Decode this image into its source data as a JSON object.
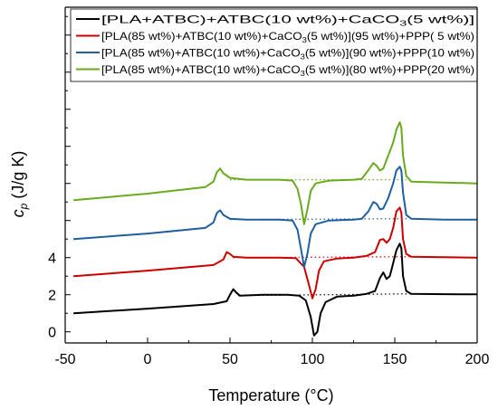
{
  "chart_data": {
    "type": "line",
    "xlabel": "Temperature (°C)",
    "ylabel_main": "c",
    "ylabel_sub": "p",
    "ylabel_unit": " (J/g K)",
    "xlim": [
      -50,
      200
    ],
    "ylim": [
      -0.6,
      17.5
    ],
    "xticks": [
      -50,
      0,
      50,
      100,
      150,
      200
    ],
    "yticks": [
      0,
      2,
      4
    ],
    "legend_position": "top",
    "series": [
      {
        "legend": [
          "[PLA+ATBC)+ATBC(10 wt%)+CaCO",
          "3",
          "(5 wt%)]"
        ],
        "color": "#000000",
        "points": [
          [
            -45,
            1.0
          ],
          [
            0,
            1.25
          ],
          [
            40,
            1.5
          ],
          [
            48,
            1.65
          ],
          [
            50,
            2.0
          ],
          [
            52,
            2.3
          ],
          [
            54,
            2.1
          ],
          [
            56,
            1.95
          ],
          [
            70,
            2.0
          ],
          [
            85,
            2.0
          ],
          [
            92,
            1.95
          ],
          [
            96,
            1.7
          ],
          [
            99,
            0.8
          ],
          [
            101,
            -0.2
          ],
          [
            103,
            0.0
          ],
          [
            105,
            1.0
          ],
          [
            108,
            1.6
          ],
          [
            115,
            1.9
          ],
          [
            125,
            1.95
          ],
          [
            133,
            2.05
          ],
          [
            138,
            2.2
          ],
          [
            141,
            2.9
          ],
          [
            143,
            3.2
          ],
          [
            145,
            2.85
          ],
          [
            147,
            3.0
          ],
          [
            149,
            3.7
          ],
          [
            151,
            4.4
          ],
          [
            153,
            4.75
          ],
          [
            154,
            4.5
          ],
          [
            155,
            3.0
          ],
          [
            157,
            2.2
          ],
          [
            160,
            2.05
          ],
          [
            180,
            2.03
          ],
          [
            200,
            2.02
          ]
        ],
        "baseline": [
          [
            55,
            1.95
          ],
          [
            160,
            2.05
          ]
        ]
      },
      {
        "legend": [
          "[PLA(85 wt%)+ATBC(10 wt%)+CaCO",
          "3",
          "(5 wt%)](95 wt%)+PPP(  5 wt%)"
        ],
        "color": "#cc0000",
        "points": [
          [
            -45,
            3.0
          ],
          [
            0,
            3.3
          ],
          [
            40,
            3.6
          ],
          [
            46,
            3.9
          ],
          [
            48,
            4.3
          ],
          [
            50,
            4.2
          ],
          [
            52,
            4.05
          ],
          [
            60,
            4.0
          ],
          [
            80,
            4.0
          ],
          [
            90,
            3.97
          ],
          [
            95,
            3.5
          ],
          [
            98,
            2.5
          ],
          [
            100,
            1.8
          ],
          [
            102,
            2.3
          ],
          [
            104,
            3.3
          ],
          [
            107,
            3.8
          ],
          [
            115,
            3.95
          ],
          [
            125,
            4.0
          ],
          [
            133,
            4.1
          ],
          [
            138,
            4.3
          ],
          [
            141,
            4.95
          ],
          [
            143,
            5.0
          ],
          [
            145,
            4.8
          ],
          [
            147,
            5.0
          ],
          [
            149,
            5.6
          ],
          [
            151,
            6.5
          ],
          [
            153,
            6.7
          ],
          [
            154,
            6.4
          ],
          [
            155,
            5.0
          ],
          [
            157,
            4.2
          ],
          [
            160,
            4.05
          ],
          [
            180,
            4.02
          ],
          [
            200,
            4.0
          ]
        ],
        "baseline": [
          [
            52,
            4.0
          ],
          [
            160,
            4.05
          ]
        ]
      },
      {
        "legend": [
          "[PLA(85 wt%)+ATBC(10 wt%)+CaCO",
          "3",
          "(5 wt%)](90 wt%)+PPP(10 wt%)"
        ],
        "color": "#1f5fa0",
        "points": [
          [
            -45,
            5.0
          ],
          [
            0,
            5.3
          ],
          [
            35,
            5.6
          ],
          [
            40,
            5.9
          ],
          [
            42,
            6.4
          ],
          [
            44,
            6.55
          ],
          [
            46,
            6.3
          ],
          [
            50,
            6.1
          ],
          [
            60,
            6.05
          ],
          [
            80,
            6.05
          ],
          [
            88,
            6.0
          ],
          [
            91,
            5.5
          ],
          [
            93,
            4.5
          ],
          [
            95,
            3.5
          ],
          [
            97,
            4.2
          ],
          [
            99,
            5.3
          ],
          [
            102,
            5.8
          ],
          [
            110,
            6.0
          ],
          [
            125,
            6.05
          ],
          [
            130,
            6.1
          ],
          [
            134,
            6.5
          ],
          [
            137,
            7.0
          ],
          [
            139,
            6.9
          ],
          [
            141,
            6.6
          ],
          [
            143,
            6.65
          ],
          [
            146,
            7.2
          ],
          [
            149,
            8.0
          ],
          [
            151,
            8.7
          ],
          [
            153,
            8.9
          ],
          [
            154,
            8.7
          ],
          [
            155,
            7.5
          ],
          [
            157,
            6.3
          ],
          [
            160,
            6.1
          ],
          [
            180,
            6.05
          ],
          [
            200,
            6.05
          ]
        ],
        "baseline": [
          [
            50,
            6.05
          ],
          [
            158,
            6.1
          ]
        ]
      },
      {
        "legend": [
          "[PLA(85 wt%)+ATBC(10 wt%)+CaCO",
          "3",
          "(5 wt%)](80 wt%)+PPP(20 wt%)"
        ],
        "color": "#6aaa1e",
        "points": [
          [
            -45,
            7.1
          ],
          [
            0,
            7.45
          ],
          [
            35,
            7.8
          ],
          [
            40,
            8.1
          ],
          [
            42,
            8.6
          ],
          [
            44,
            8.8
          ],
          [
            46,
            8.55
          ],
          [
            50,
            8.3
          ],
          [
            60,
            8.2
          ],
          [
            80,
            8.2
          ],
          [
            88,
            8.15
          ],
          [
            91,
            7.7
          ],
          [
            93,
            6.9
          ],
          [
            95,
            5.8
          ],
          [
            97,
            6.6
          ],
          [
            99,
            7.6
          ],
          [
            102,
            8.0
          ],
          [
            110,
            8.15
          ],
          [
            125,
            8.2
          ],
          [
            130,
            8.25
          ],
          [
            133,
            8.6
          ],
          [
            137,
            9.1
          ],
          [
            139,
            8.95
          ],
          [
            141,
            8.7
          ],
          [
            143,
            8.8
          ],
          [
            146,
            9.5
          ],
          [
            149,
            10.2
          ],
          [
            151,
            10.9
          ],
          [
            153,
            11.3
          ],
          [
            154,
            11.0
          ],
          [
            155,
            9.5
          ],
          [
            157,
            8.4
          ],
          [
            160,
            8.1
          ],
          [
            180,
            8.05
          ],
          [
            200,
            8.0
          ]
        ],
        "baseline": [
          [
            50,
            8.2
          ],
          [
            158,
            8.2
          ]
        ]
      }
    ]
  }
}
